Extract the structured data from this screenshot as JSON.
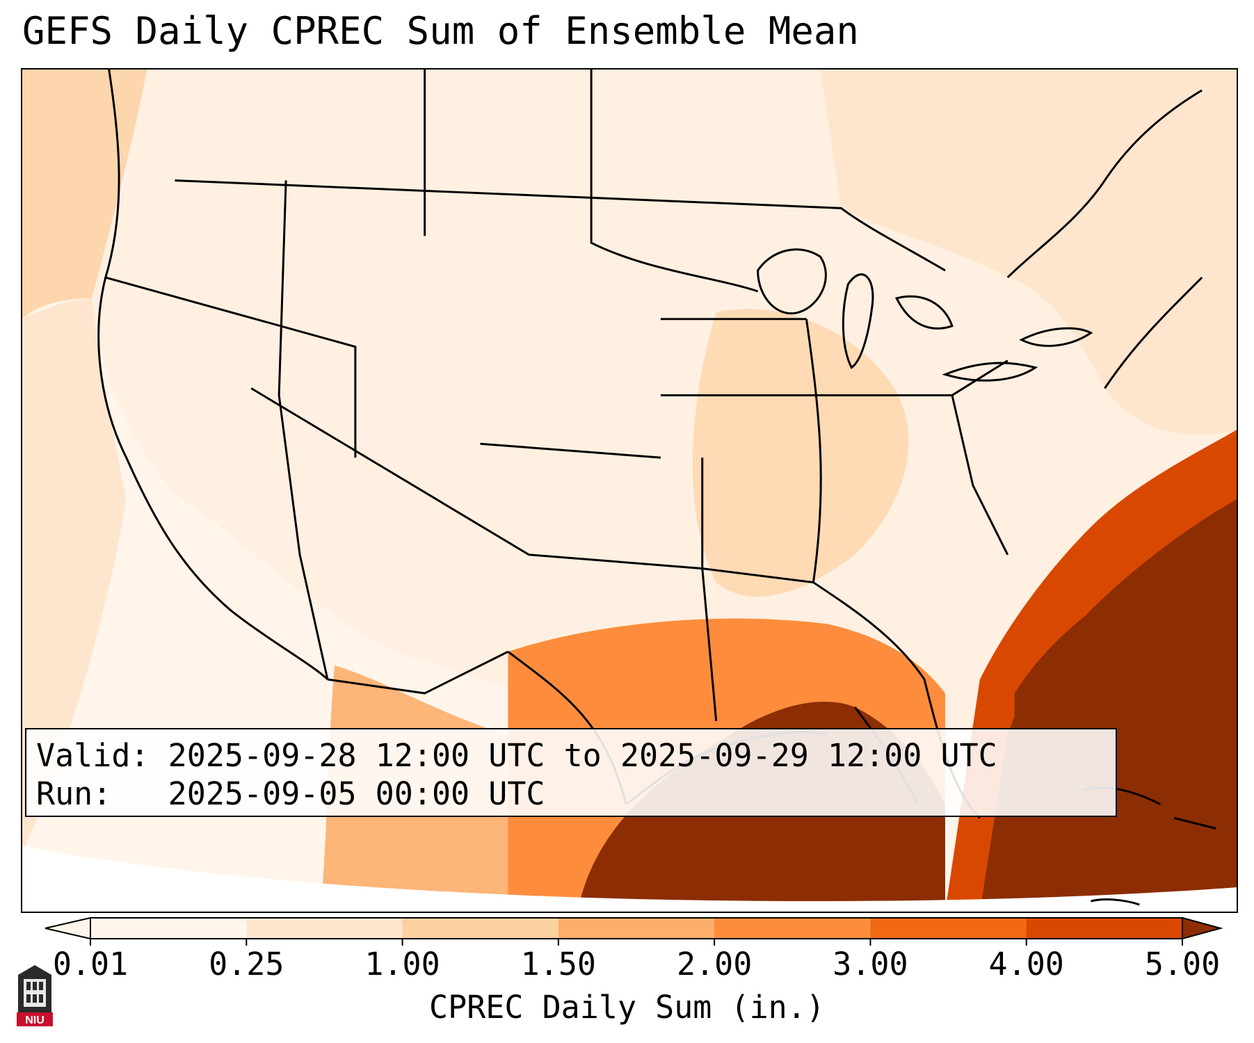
{
  "title": "GEFS Daily CPREC Sum of Ensemble Mean",
  "info": {
    "valid_label": "Valid:",
    "valid_value": "2025-09-28 12:00 UTC to 2025-09-29 12:00 UTC",
    "run_label": "Run:",
    "run_value": "2025-09-05 00:00 UTC"
  },
  "colorbar": {
    "label": "CPREC Daily Sum (in.)",
    "ticks": [
      "0.01",
      "0.25",
      "1.00",
      "1.50",
      "2.00",
      "3.00",
      "4.00",
      "5.00"
    ],
    "colors": [
      "#fff5eb",
      "#fee6ce",
      "#fdd0a2",
      "#fdae6b",
      "#fd8d3c",
      "#f16913",
      "#d94801",
      "#8c2d04"
    ],
    "extend": "both"
  },
  "map": {
    "region": "Contiguous United States",
    "field": "CPREC daily sum",
    "ocean_color": "#fee6ce",
    "heavy_color": "#8c2d04",
    "border_color": "#000000"
  },
  "logo": {
    "text": "NIU",
    "color": "#c8102e"
  }
}
